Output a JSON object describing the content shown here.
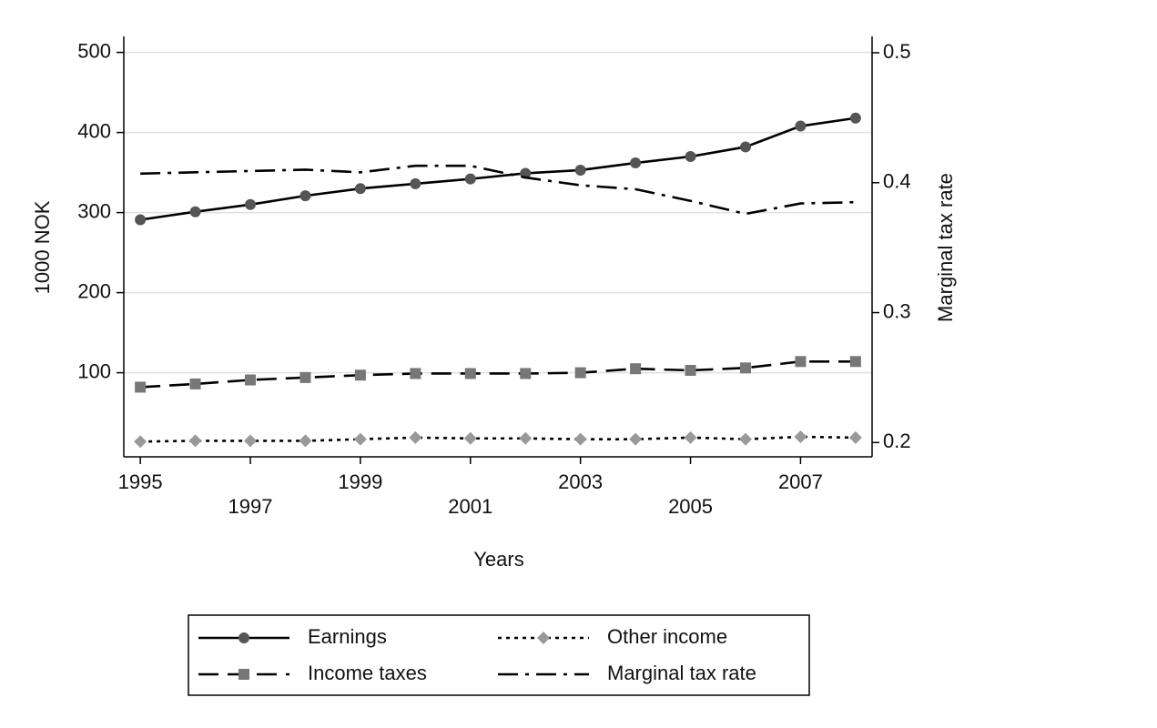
{
  "chart_data": {
    "type": "line",
    "x": [
      1995,
      1996,
      1997,
      1998,
      1999,
      2000,
      2001,
      2002,
      2003,
      2004,
      2005,
      2006,
      2007,
      2008
    ],
    "xlim": [
      1994.7,
      2008.3
    ],
    "xticks": [
      1995,
      1997,
      1999,
      2001,
      2003,
      2005,
      2007
    ],
    "xlabel": "Years",
    "ylabel": "1000 NOK",
    "y2label": "Marginal tax rate",
    "ylim": [
      -5,
      520
    ],
    "yticks": [
      100,
      200,
      300,
      400,
      500
    ],
    "y2lim": [
      0.189,
      0.5126
    ],
    "y2ticks": [
      0.2,
      0.3,
      0.4,
      0.5
    ],
    "grid": true,
    "series": [
      {
        "name": "Earnings",
        "color": "#000000",
        "marker": "circle",
        "marker_color": "#555555",
        "dash": "solid",
        "values": [
          291,
          301,
          310,
          321,
          330,
          336,
          342,
          349,
          353,
          362,
          370,
          382,
          408,
          418
        ]
      },
      {
        "name": "Income taxes",
        "color": "#000000",
        "marker": "square",
        "marker_color": "#777777",
        "dash": "dashed",
        "values": [
          82,
          86,
          91,
          94,
          97,
          99,
          99,
          99,
          100,
          105,
          103,
          106,
          114,
          114
        ]
      },
      {
        "name": "Other income",
        "color": "#000000",
        "marker": "diamond",
        "marker_color": "#999999",
        "dash": "dotted",
        "values": [
          14,
          15,
          15,
          15,
          17,
          19,
          18,
          18,
          17,
          17,
          19,
          17,
          20,
          19
        ]
      },
      {
        "name": "Marginal tax rate",
        "color": "#000000",
        "marker": "none",
        "dash": "dashdot",
        "axis": "y2",
        "values": [
          0.407,
          0.408,
          0.409,
          0.41,
          0.408,
          0.413,
          0.413,
          0.404,
          0.398,
          0.395,
          0.386,
          0.376,
          0.384,
          0.385
        ]
      }
    ]
  }
}
